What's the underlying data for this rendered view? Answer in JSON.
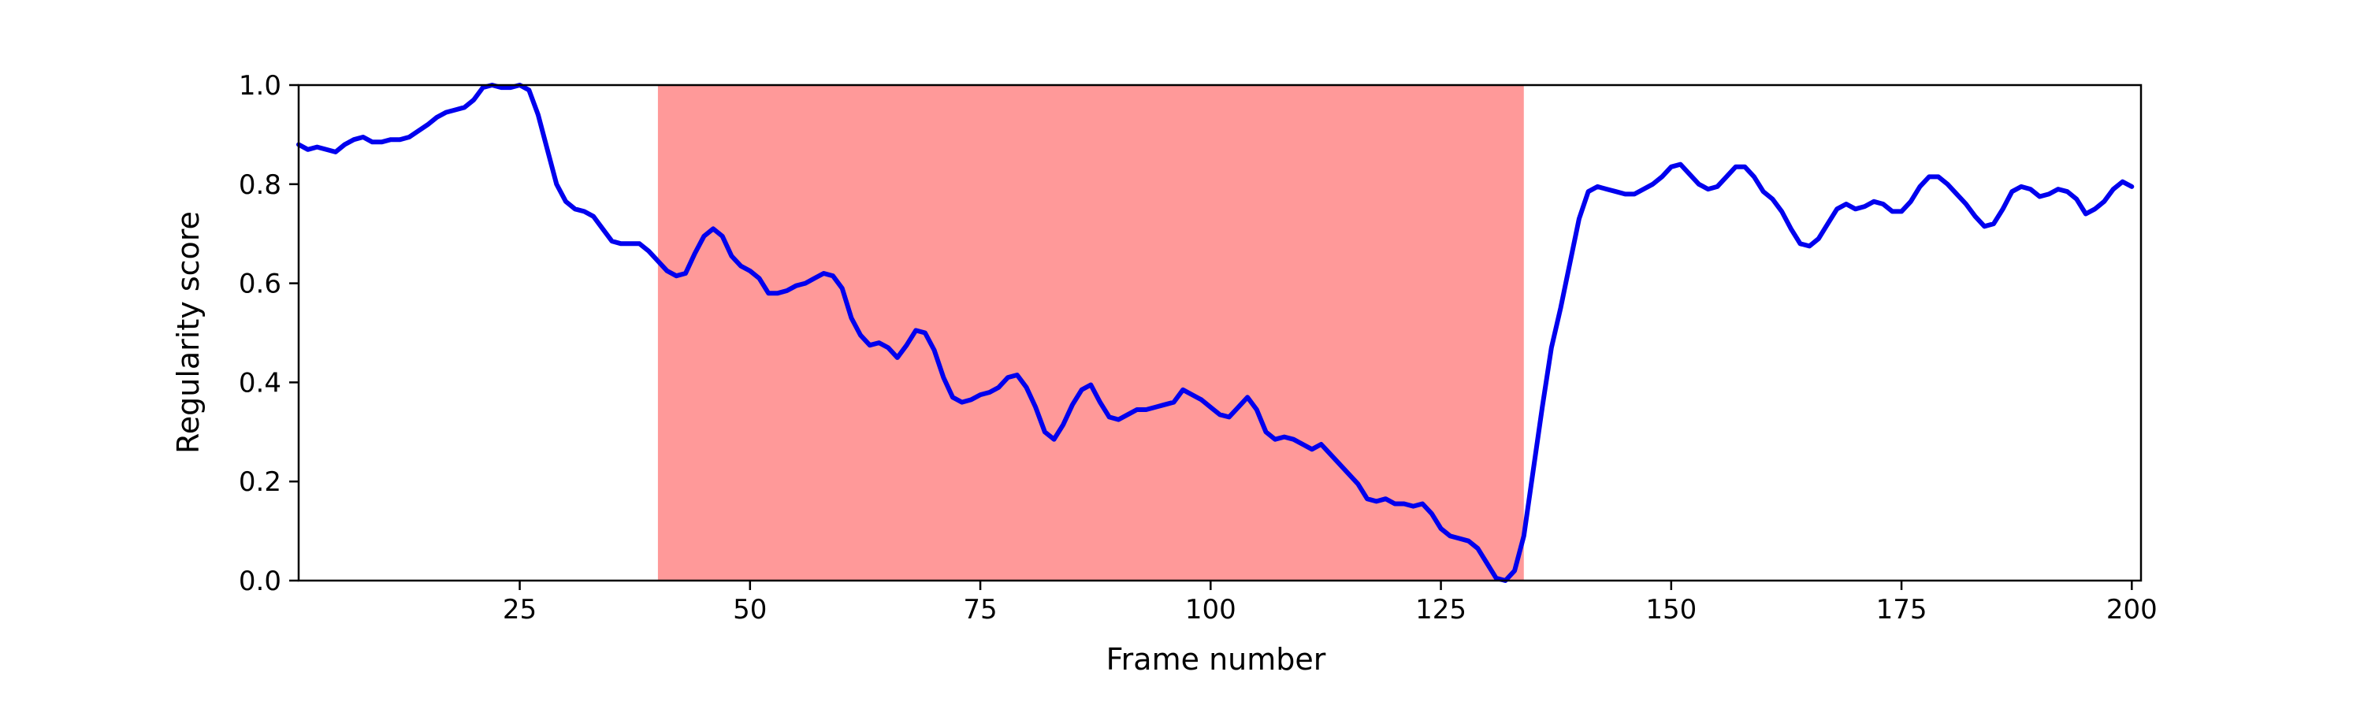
{
  "chart_data": {
    "type": "line",
    "xlabel": "Frame number",
    "ylabel": "Regularity score",
    "xlim": [
      1,
      201
    ],
    "ylim": [
      0,
      1
    ],
    "x_ticks": [
      25,
      50,
      75,
      100,
      125,
      150,
      175,
      200
    ],
    "y_ticks": [
      0.0,
      0.2,
      0.4,
      0.6,
      0.8,
      1.0
    ],
    "x_tick_labels": [
      "25",
      "50",
      "75",
      "100",
      "125",
      "150",
      "175",
      "200"
    ],
    "y_tick_labels": [
      "0.0",
      "0.2",
      "0.4",
      "0.6",
      "0.8",
      "1.0"
    ],
    "grid": false,
    "highlight_region": {
      "x_start": 40,
      "x_end": 134,
      "color": "#ff9999"
    },
    "series": [
      {
        "color": "#0000ee",
        "points": [
          [
            1,
            0.88
          ],
          [
            2,
            0.87
          ],
          [
            3,
            0.875
          ],
          [
            5,
            0.865
          ],
          [
            6,
            0.88
          ],
          [
            7,
            0.89
          ],
          [
            8,
            0.895
          ],
          [
            9,
            0.885
          ],
          [
            10,
            0.885
          ],
          [
            11,
            0.89
          ],
          [
            12,
            0.89
          ],
          [
            13,
            0.895
          ],
          [
            15,
            0.92
          ],
          [
            16,
            0.935
          ],
          [
            17,
            0.945
          ],
          [
            18,
            0.95
          ],
          [
            19,
            0.955
          ],
          [
            20,
            0.97
          ],
          [
            21,
            0.995
          ],
          [
            22,
            1.0
          ],
          [
            23,
            0.995
          ],
          [
            24,
            0.995
          ],
          [
            25,
            1.0
          ],
          [
            26,
            0.99
          ],
          [
            27,
            0.94
          ],
          [
            28,
            0.87
          ],
          [
            29,
            0.8
          ],
          [
            30,
            0.765
          ],
          [
            31,
            0.75
          ],
          [
            32,
            0.745
          ],
          [
            33,
            0.735
          ],
          [
            34,
            0.71
          ],
          [
            35,
            0.685
          ],
          [
            36,
            0.68
          ],
          [
            38,
            0.68
          ],
          [
            39,
            0.665
          ],
          [
            40,
            0.645
          ],
          [
            41,
            0.625
          ],
          [
            42,
            0.615
          ],
          [
            43,
            0.62
          ],
          [
            44,
            0.66
          ],
          [
            45,
            0.695
          ],
          [
            46,
            0.71
          ],
          [
            47,
            0.695
          ],
          [
            48,
            0.655
          ],
          [
            49,
            0.635
          ],
          [
            50,
            0.625
          ],
          [
            51,
            0.61
          ],
          [
            52,
            0.58
          ],
          [
            53,
            0.58
          ],
          [
            54,
            0.585
          ],
          [
            55,
            0.595
          ],
          [
            56,
            0.6
          ],
          [
            57,
            0.61
          ],
          [
            58,
            0.62
          ],
          [
            59,
            0.615
          ],
          [
            60,
            0.59
          ],
          [
            61,
            0.53
          ],
          [
            62,
            0.495
          ],
          [
            63,
            0.475
          ],
          [
            64,
            0.48
          ],
          [
            65,
            0.47
          ],
          [
            66,
            0.45
          ],
          [
            67,
            0.475
          ],
          [
            68,
            0.505
          ],
          [
            69,
            0.5
          ],
          [
            70,
            0.465
          ],
          [
            71,
            0.41
          ],
          [
            72,
            0.37
          ],
          [
            73,
            0.36
          ],
          [
            74,
            0.365
          ],
          [
            75,
            0.375
          ],
          [
            76,
            0.38
          ],
          [
            77,
            0.39
          ],
          [
            78,
            0.41
          ],
          [
            79,
            0.415
          ],
          [
            80,
            0.39
          ],
          [
            81,
            0.35
          ],
          [
            82,
            0.3
          ],
          [
            83,
            0.285
          ],
          [
            84,
            0.315
          ],
          [
            85,
            0.355
          ],
          [
            86,
            0.385
          ],
          [
            87,
            0.395
          ],
          [
            88,
            0.36
          ],
          [
            89,
            0.33
          ],
          [
            90,
            0.325
          ],
          [
            91,
            0.335
          ],
          [
            92,
            0.345
          ],
          [
            93,
            0.345
          ],
          [
            94,
            0.35
          ],
          [
            95,
            0.355
          ],
          [
            96,
            0.36
          ],
          [
            97,
            0.385
          ],
          [
            98,
            0.375
          ],
          [
            99,
            0.365
          ],
          [
            100,
            0.35
          ],
          [
            101,
            0.335
          ],
          [
            102,
            0.33
          ],
          [
            103,
            0.35
          ],
          [
            104,
            0.37
          ],
          [
            105,
            0.345
          ],
          [
            106,
            0.3
          ],
          [
            107,
            0.285
          ],
          [
            108,
            0.29
          ],
          [
            109,
            0.285
          ],
          [
            110,
            0.275
          ],
          [
            111,
            0.265
          ],
          [
            112,
            0.275
          ],
          [
            113,
            0.255
          ],
          [
            114,
            0.235
          ],
          [
            115,
            0.215
          ],
          [
            116,
            0.195
          ],
          [
            117,
            0.165
          ],
          [
            118,
            0.16
          ],
          [
            119,
            0.165
          ],
          [
            120,
            0.155
          ],
          [
            121,
            0.155
          ],
          [
            122,
            0.15
          ],
          [
            123,
            0.155
          ],
          [
            124,
            0.135
          ],
          [
            125,
            0.105
          ],
          [
            126,
            0.09
          ],
          [
            127,
            0.085
          ],
          [
            128,
            0.08
          ],
          [
            129,
            0.065
          ],
          [
            130,
            0.035
          ],
          [
            131,
            0.005
          ],
          [
            132,
            0.0
          ],
          [
            133,
            0.02
          ],
          [
            134,
            0.09
          ],
          [
            135,
            0.22
          ],
          [
            136,
            0.35
          ],
          [
            137,
            0.47
          ],
          [
            138,
            0.55
          ],
          [
            139,
            0.64
          ],
          [
            140,
            0.73
          ],
          [
            141,
            0.785
          ],
          [
            142,
            0.795
          ],
          [
            143,
            0.79
          ],
          [
            144,
            0.785
          ],
          [
            145,
            0.78
          ],
          [
            146,
            0.78
          ],
          [
            147,
            0.79
          ],
          [
            148,
            0.8
          ],
          [
            149,
            0.815
          ],
          [
            150,
            0.835
          ],
          [
            151,
            0.84
          ],
          [
            152,
            0.82
          ],
          [
            153,
            0.8
          ],
          [
            154,
            0.79
          ],
          [
            155,
            0.795
          ],
          [
            156,
            0.815
          ],
          [
            157,
            0.835
          ],
          [
            158,
            0.835
          ],
          [
            159,
            0.815
          ],
          [
            160,
            0.785
          ],
          [
            161,
            0.77
          ],
          [
            162,
            0.745
          ],
          [
            163,
            0.71
          ],
          [
            164,
            0.68
          ],
          [
            165,
            0.675
          ],
          [
            166,
            0.69
          ],
          [
            167,
            0.72
          ],
          [
            168,
            0.75
          ],
          [
            169,
            0.76
          ],
          [
            170,
            0.75
          ],
          [
            171,
            0.755
          ],
          [
            172,
            0.765
          ],
          [
            173,
            0.76
          ],
          [
            174,
            0.745
          ],
          [
            175,
            0.745
          ],
          [
            176,
            0.765
          ],
          [
            177,
            0.795
          ],
          [
            178,
            0.815
          ],
          [
            179,
            0.815
          ],
          [
            180,
            0.8
          ],
          [
            181,
            0.78
          ],
          [
            182,
            0.76
          ],
          [
            183,
            0.735
          ],
          [
            184,
            0.715
          ],
          [
            185,
            0.72
          ],
          [
            186,
            0.75
          ],
          [
            187,
            0.785
          ],
          [
            188,
            0.795
          ],
          [
            189,
            0.79
          ],
          [
            190,
            0.775
          ],
          [
            191,
            0.78
          ],
          [
            192,
            0.79
          ],
          [
            193,
            0.785
          ],
          [
            194,
            0.77
          ],
          [
            195,
            0.74
          ],
          [
            196,
            0.75
          ],
          [
            197,
            0.765
          ],
          [
            198,
            0.79
          ],
          [
            199,
            0.805
          ],
          [
            200,
            0.795
          ]
        ]
      }
    ]
  }
}
